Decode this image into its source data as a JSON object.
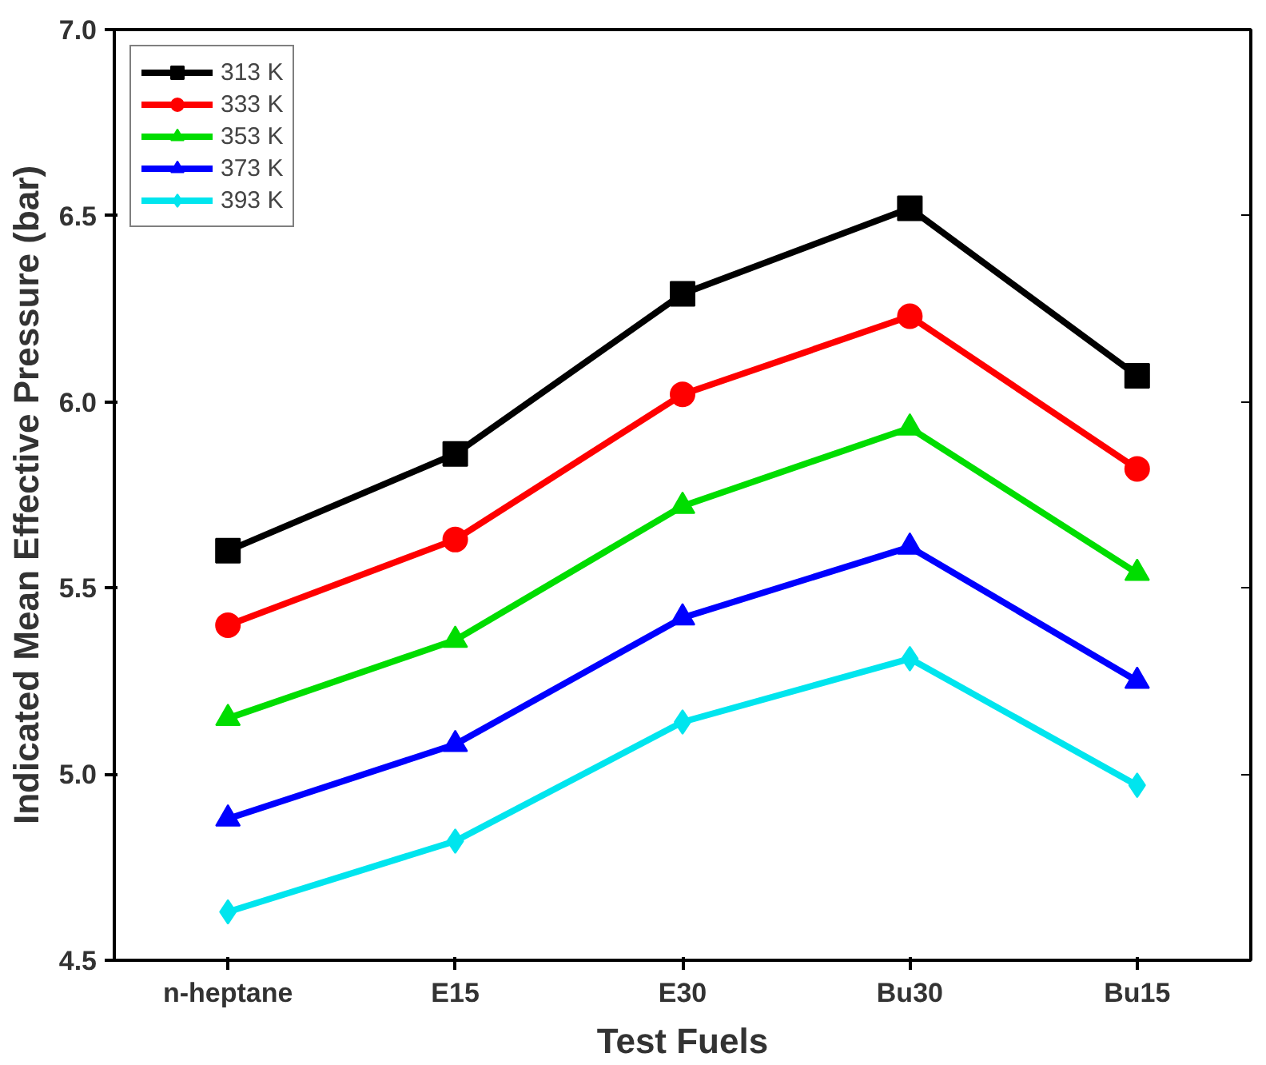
{
  "chart_data": {
    "type": "line",
    "xlabel": "Test Fuels",
    "ylabel": "Indicated Mean Effective Pressure (bar)",
    "categories": [
      "n-heptane",
      "E15",
      "E30",
      "Bu30",
      "Bu15"
    ],
    "series": [
      {
        "name": "313 K",
        "color": "#000000",
        "marker": "square",
        "values": [
          5.6,
          5.86,
          6.29,
          6.52,
          6.07
        ]
      },
      {
        "name": "333 K",
        "color": "#ff0000",
        "marker": "circle",
        "values": [
          5.4,
          5.63,
          6.02,
          6.23,
          5.82
        ]
      },
      {
        "name": "353 K",
        "color": "#00dd00",
        "marker": "triangle",
        "values": [
          5.15,
          5.36,
          5.72,
          5.93,
          5.54
        ]
      },
      {
        "name": "373 K",
        "color": "#0000ff",
        "marker": "triangle",
        "values": [
          4.88,
          5.08,
          5.42,
          5.61,
          5.25
        ]
      },
      {
        "name": "393 K",
        "color": "#00e5ee",
        "marker": "diamond",
        "values": [
          4.63,
          4.82,
          5.14,
          5.31,
          4.97
        ]
      }
    ],
    "ylim": [
      4.5,
      7.0
    ],
    "yticks": [
      4.5,
      {
        "value": 5,
        "label": "5.0"
      },
      5.5,
      {
        "value": 6,
        "label": "6.0"
      },
      6.5,
      {
        "value": 7,
        "label": "7.0"
      }
    ],
    "legend": "top left",
    "grid": false,
    "line_style": "solid"
  }
}
